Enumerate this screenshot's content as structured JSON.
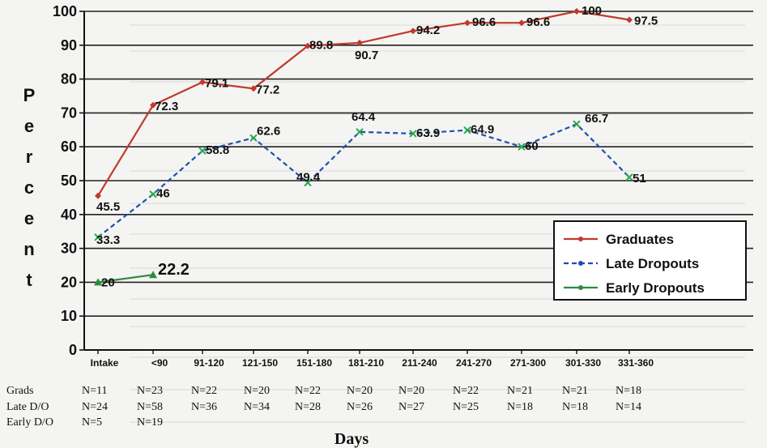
{
  "chart_data": {
    "type": "line",
    "ylabel": "Percent",
    "xlabel": "Days",
    "ylim": [
      0,
      100
    ],
    "yticks": [
      "0",
      "10",
      "20",
      "30",
      "40",
      "50",
      "60",
      "70",
      "80",
      "90",
      "100"
    ],
    "categories": [
      "Intake",
      "<90",
      "91-120",
      "121-150",
      "151-180",
      "181-210",
      "211-240",
      "241-270",
      "271-300",
      "301-330",
      "331-360"
    ],
    "series": [
      {
        "name": "Graduates",
        "color": "#c0392b",
        "style": "solid",
        "marker": "diamond",
        "values": [
          45.5,
          72.3,
          79.1,
          77.2,
          89.8,
          90.7,
          94.2,
          96.6,
          96.6,
          100,
          97.5
        ],
        "labels": [
          "45.5",
          "72.3",
          "79.1",
          "77.2",
          "89.8",
          "90.7",
          "94.2",
          "96.6",
          "96.6",
          "100",
          "97.5"
        ]
      },
      {
        "name": "Late Dropouts",
        "color": "#1f4fb0",
        "style": "dashed",
        "marker": "square",
        "values": [
          33.3,
          46,
          58.8,
          62.6,
          49.4,
          64.4,
          63.9,
          64.9,
          60,
          66.7,
          51
        ],
        "labels": [
          "33.3",
          "46",
          "58.8",
          "62.6",
          "49.4",
          "64.4",
          "63.9",
          "64.9",
          "60",
          "66.7",
          "51"
        ]
      },
      {
        "name": "Early Dropouts",
        "color": "#2e8b3d",
        "style": "solid",
        "marker": "triangle",
        "values": [
          20,
          22.2,
          null,
          null,
          null,
          null,
          null,
          null,
          null,
          null,
          null
        ],
        "labels": [
          "20",
          "22.2",
          "",
          "",
          "",
          "",
          "",
          "",
          "",
          "",
          ""
        ]
      }
    ],
    "legend_position": "bottom-right",
    "grid": true,
    "table": {
      "rows": [
        {
          "label": "Grads",
          "cells": [
            "N=11",
            "N=23",
            "N=22",
            "N=20",
            "N=22",
            "N=20",
            "N=20",
            "N=22",
            "N=21",
            "N=21",
            "N=18"
          ]
        },
        {
          "label": "Late D/O",
          "cells": [
            "N=24",
            "N=58",
            "N=36",
            "N=34",
            "N=28",
            "N=26",
            "N=27",
            "N=25",
            "N=18",
            "N=18",
            "N=14"
          ]
        },
        {
          "label": "Early D/O",
          "cells": [
            "N=5",
            "N=19",
            "",
            "",
            "",
            "",
            "",
            "",
            "",
            "",
            ""
          ]
        }
      ]
    }
  }
}
